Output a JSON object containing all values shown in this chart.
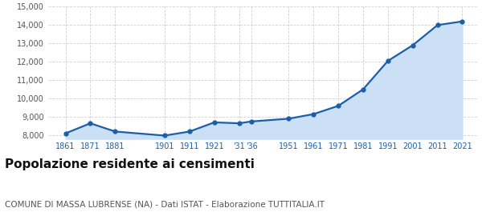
{
  "years": [
    1861,
    1871,
    1881,
    1901,
    1911,
    1921,
    1931,
    1936,
    1951,
    1961,
    1971,
    1981,
    1991,
    2001,
    2011,
    2021
  ],
  "population": [
    8100,
    8650,
    8200,
    7980,
    8200,
    8700,
    8650,
    8750,
    8900,
    9150,
    9600,
    10500,
    12050,
    12900,
    14000,
    14200
  ],
  "x_tick_positions": [
    1861,
    1871,
    1881,
    1901,
    1911,
    1921,
    1931,
    1936,
    1951,
    1961,
    1971,
    1981,
    1991,
    2001,
    2011,
    2021
  ],
  "x_tick_labels": [
    "1861",
    "1871",
    "1881",
    "1901",
    "1911",
    "1921",
    "'31",
    "'36",
    "1951",
    "1961",
    "1971",
    "1981",
    "1991",
    "2001",
    "2011",
    "2021"
  ],
  "ylim_bottom": 7800,
  "ylim_top": 15000,
  "yticks": [
    8000,
    9000,
    10000,
    11000,
    12000,
    13000,
    14000,
    15000
  ],
  "xlim_left": 1854,
  "xlim_right": 2027,
  "line_color": "#1a5fa8",
  "fill_color": "#cce0f5",
  "marker_size": 3.5,
  "line_width": 1.6,
  "grid_color": "#d0d0d0",
  "grid_linestyle": "--",
  "title": "Popolazione residente ai censimenti",
  "subtitle": "COMUNE DI MASSA LUBRENSE (NA) - Dati ISTAT - Elaborazione TUTTITALIA.IT",
  "title_fontsize": 11,
  "subtitle_fontsize": 7.5,
  "title_color": "#111111",
  "subtitle_color": "#555555",
  "tick_color_x": "#1a5fa8",
  "tick_color_y": "#555555",
  "tick_fontsize": 7,
  "background_color": "#ffffff"
}
